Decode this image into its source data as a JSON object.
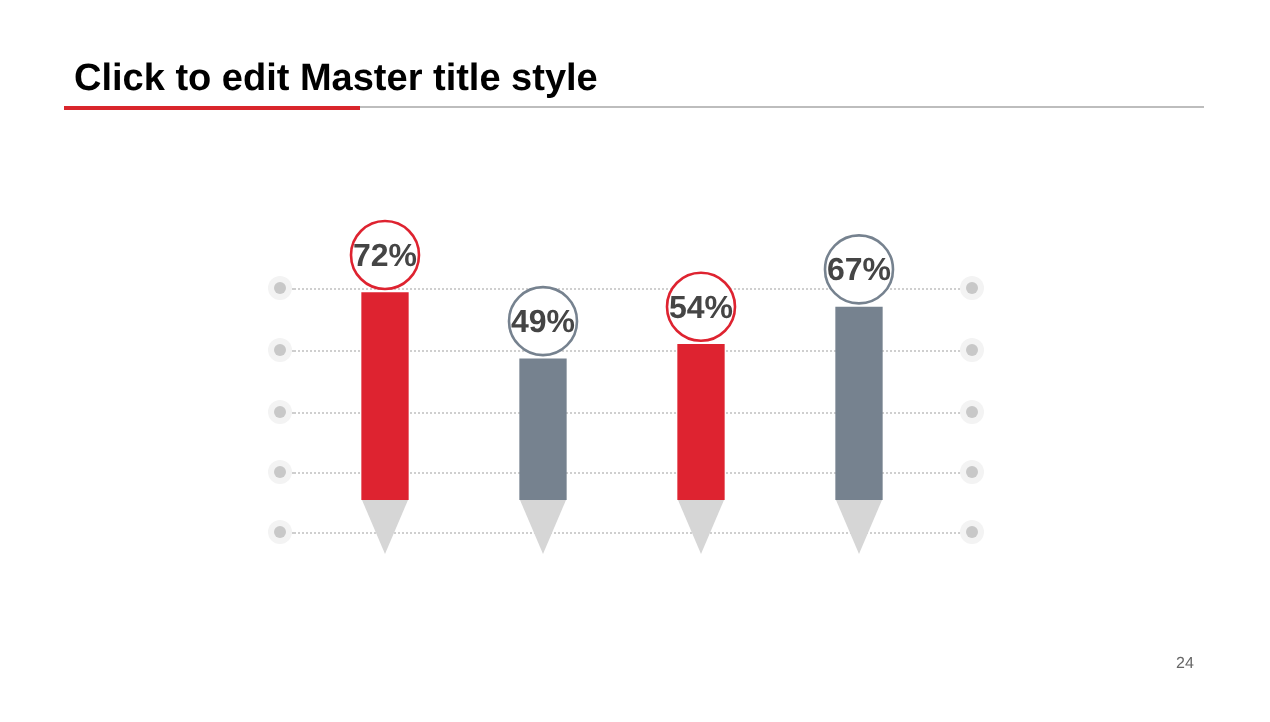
{
  "chart_data": {
    "type": "bar",
    "title": "Click to edit Master title style",
    "categories": [
      null,
      null,
      null,
      null
    ],
    "values": [
      72,
      49,
      54,
      67
    ],
    "colors": [
      "#de2330",
      "#76828f",
      "#de2330",
      "#76828f"
    ],
    "value_labels": [
      "72%",
      "49%",
      "54%",
      "67%"
    ],
    "tick_labels": false,
    "legend": false,
    "annotations": [
      "24"
    ]
  }
}
